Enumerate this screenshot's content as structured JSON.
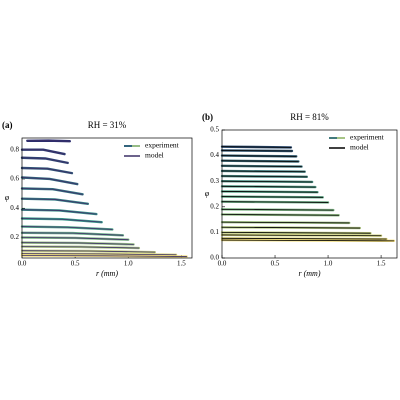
{
  "chart_data": [
    {
      "type": "line",
      "panel_label": "(a)",
      "title": "RH = 31%",
      "xlabel": "r (mm)",
      "ylabel": "φ",
      "xlim": [
        0,
        1.6
      ],
      "ylim": [
        0.06,
        0.88
      ],
      "xticks": [
        {
          "value": 0,
          "label": "0.0"
        },
        0.5,
        {
          "value": 1,
          "label": "1.0"
        },
        1.5
      ],
      "yticks": [
        0.2,
        0.4,
        0.6,
        0.8
      ],
      "legend": "upper right",
      "series": [
        {
          "name": "experiment",
          "colors": [
            "#2b2d6e",
            "#3b9a8c",
            "#f2de7f"
          ],
          "curves": [
            {
              "x": [
                0.05,
                0.25,
                0.45
              ],
              "values": [
                0.861,
                0.862,
                0.858
              ]
            },
            {
              "x": [
                0,
                0.2,
                0.4
              ],
              "values": [
                0.8,
                0.8,
                0.77
              ]
            },
            {
              "x": [
                0,
                0.22,
                0.43
              ],
              "values": [
                0.745,
                0.74,
                0.71
              ]
            },
            {
              "x": [
                0,
                0.24,
                0.47
              ],
              "values": [
                0.675,
                0.67,
                0.64
              ]
            },
            {
              "x": [
                0,
                0.26,
                0.52
              ],
              "values": [
                0.61,
                0.6,
                0.565
              ]
            },
            {
              "x": [
                0,
                0.29,
                0.57
              ],
              "values": [
                0.535,
                0.53,
                0.495
              ]
            },
            {
              "x": [
                0,
                0.31,
                0.62
              ],
              "values": [
                0.465,
                0.46,
                0.43
              ]
            },
            {
              "x": [
                0,
                0.35,
                0.7
              ],
              "values": [
                0.39,
                0.385,
                0.36
              ]
            },
            {
              "x": [
                0,
                0.38,
                0.75
              ],
              "values": [
                0.33,
                0.325,
                0.305
              ]
            },
            {
              "x": [
                0,
                0.43,
                0.85
              ],
              "values": [
                0.275,
                0.27,
                0.255
              ]
            },
            {
              "x": [
                0,
                0.48,
                0.95
              ],
              "values": [
                0.232,
                0.23,
                0.215
              ]
            },
            {
              "x": [
                0,
                0.5,
                1.0
              ],
              "values": [
                0.2,
                0.197,
                0.185
              ]
            },
            {
              "x": [
                0,
                0.53,
                1.05
              ],
              "values": [
                0.165,
                0.163,
                0.153
              ]
            },
            {
              "x": [
                0,
                0.55,
                1.1
              ],
              "values": [
                0.138,
                0.136,
                0.128
              ]
            },
            {
              "x": [
                0,
                0.63,
                1.25
              ],
              "values": [
                0.11,
                0.108,
                0.1
              ]
            },
            {
              "x": [
                0,
                0.73,
                1.45
              ],
              "values": [
                0.09,
                0.088,
                0.082
              ]
            },
            {
              "x": [
                0,
                0.78,
                1.55
              ],
              "values": [
                0.077,
                0.075,
                0.07
              ]
            }
          ]
        },
        {
          "name": "model",
          "color": "#3b2f66",
          "curves": [
            {
              "x": [
                0.05,
                0.25,
                0.45
              ],
              "values": [
                0.861,
                0.862,
                0.858
              ]
            },
            {
              "x": [
                0,
                0.2,
                0.4
              ],
              "values": [
                0.8,
                0.8,
                0.77
              ]
            },
            {
              "x": [
                0,
                0.22,
                0.43
              ],
              "values": [
                0.745,
                0.74,
                0.71
              ]
            },
            {
              "x": [
                0,
                0.24,
                0.47
              ],
              "values": [
                0.675,
                0.67,
                0.64
              ]
            },
            {
              "x": [
                0,
                0.26,
                0.52
              ],
              "values": [
                0.61,
                0.6,
                0.565
              ]
            },
            {
              "x": [
                0,
                0.29,
                0.57
              ],
              "values": [
                0.535,
                0.53,
                0.495
              ]
            },
            {
              "x": [
                0,
                0.31,
                0.62
              ],
              "values": [
                0.465,
                0.46,
                0.43
              ]
            },
            {
              "x": [
                0,
                0.35,
                0.7
              ],
              "values": [
                0.39,
                0.385,
                0.36
              ]
            },
            {
              "x": [
                0,
                0.38,
                0.75
              ],
              "values": [
                0.33,
                0.325,
                0.305
              ]
            },
            {
              "x": [
                0,
                0.43,
                0.85
              ],
              "values": [
                0.275,
                0.27,
                0.255
              ]
            },
            {
              "x": [
                0,
                0.48,
                0.95
              ],
              "values": [
                0.232,
                0.23,
                0.215
              ]
            },
            {
              "x": [
                0,
                0.5,
                1.0
              ],
              "values": [
                0.2,
                0.197,
                0.185
              ]
            },
            {
              "x": [
                0,
                0.53,
                1.05
              ],
              "values": [
                0.165,
                0.163,
                0.153
              ]
            },
            {
              "x": [
                0,
                0.55,
                1.1
              ],
              "values": [
                0.138,
                0.136,
                0.128
              ]
            },
            {
              "x": [
                0,
                0.63,
                1.25
              ],
              "values": [
                0.11,
                0.108,
                0.1
              ]
            },
            {
              "x": [
                0,
                0.73,
                1.45
              ],
              "values": [
                0.09,
                0.088,
                0.082
              ]
            },
            {
              "x": [
                0,
                0.78,
                1.55
              ],
              "values": [
                0.077,
                0.075,
                0.07
              ]
            }
          ]
        }
      ]
    },
    {
      "type": "line",
      "panel_label": "(b)",
      "title": "RH = 81%",
      "xlabel": "r (mm)",
      "ylabel": "φ",
      "xlim": [
        0,
        1.65
      ],
      "ylim": [
        0,
        0.5
      ],
      "xticks": [
        {
          "value": 0,
          "label": "0.0"
        },
        0.5,
        {
          "value": 1,
          "label": "1.0"
        },
        1.5
      ],
      "yticks": [
        {
          "value": 0,
          "label": "0.0"
        },
        0.1,
        0.2,
        0.3,
        0.4,
        0.5
      ],
      "legend": "upper right",
      "series": [
        {
          "name": "experiment",
          "colors": [
            "#2b4a6e",
            "#5aaa8c",
            "#f2de7f"
          ],
          "curves": [
            {
              "x": [
                0,
                0.65
              ],
              "values": [
                0.435,
                0.432
              ]
            },
            {
              "x": [
                0,
                0.66
              ],
              "values": [
                0.42,
                0.418
              ]
            },
            {
              "x": [
                0,
                0.7
              ],
              "values": [
                0.4,
                0.397
              ]
            },
            {
              "x": [
                0,
                0.72
              ],
              "values": [
                0.38,
                0.377
              ]
            },
            {
              "x": [
                0,
                0.75
              ],
              "values": [
                0.36,
                0.357
              ]
            },
            {
              "x": [
                0,
                0.78
              ],
              "values": [
                0.34,
                0.337
              ]
            },
            {
              "x": [
                0,
                0.8
              ],
              "values": [
                0.32,
                0.317
              ]
            },
            {
              "x": [
                0,
                0.85
              ],
              "values": [
                0.3,
                0.297
              ]
            },
            {
              "x": [
                0,
                0.88
              ],
              "values": [
                0.28,
                0.277
              ]
            },
            {
              "x": [
                0,
                0.9
              ],
              "values": [
                0.26,
                0.257
              ]
            },
            {
              "x": [
                0,
                0.95
              ],
              "values": [
                0.24,
                0.237
              ]
            },
            {
              "x": [
                0,
                1.0
              ],
              "values": [
                0.22,
                0.217
              ]
            },
            {
              "x": [
                0,
                1.05
              ],
              "values": [
                0.19,
                0.187
              ]
            },
            {
              "x": [
                0,
                1.1
              ],
              "values": [
                0.17,
                0.167
              ]
            },
            {
              "x": [
                0,
                1.2
              ],
              "values": [
                0.14,
                0.137
              ]
            },
            {
              "x": [
                0,
                1.3
              ],
              "values": [
                0.12,
                0.117
              ]
            },
            {
              "x": [
                0,
                1.4
              ],
              "values": [
                0.1,
                0.097
              ]
            },
            {
              "x": [
                0,
                1.5
              ],
              "values": [
                0.09,
                0.087
              ]
            },
            {
              "x": [
                0,
                1.55
              ],
              "values": [
                0.077,
                0.074
              ]
            },
            {
              "x": [
                0,
                1.62
              ],
              "values": [
                0.07,
                0.067
              ]
            }
          ]
        },
        {
          "name": "model",
          "color": "#000000",
          "curves": [
            {
              "x": [
                0,
                0.65
              ],
              "values": [
                0.435,
                0.432
              ]
            },
            {
              "x": [
                0,
                0.66
              ],
              "values": [
                0.42,
                0.418
              ]
            },
            {
              "x": [
                0,
                0.7
              ],
              "values": [
                0.4,
                0.397
              ]
            },
            {
              "x": [
                0,
                0.72
              ],
              "values": [
                0.38,
                0.377
              ]
            },
            {
              "x": [
                0,
                0.75
              ],
              "values": [
                0.36,
                0.357
              ]
            },
            {
              "x": [
                0,
                0.78
              ],
              "values": [
                0.34,
                0.337
              ]
            },
            {
              "x": [
                0,
                0.8
              ],
              "values": [
                0.32,
                0.317
              ]
            },
            {
              "x": [
                0,
                0.85
              ],
              "values": [
                0.3,
                0.297
              ]
            },
            {
              "x": [
                0,
                0.88
              ],
              "values": [
                0.28,
                0.277
              ]
            },
            {
              "x": [
                0,
                0.9
              ],
              "values": [
                0.26,
                0.257
              ]
            },
            {
              "x": [
                0,
                0.95
              ],
              "values": [
                0.24,
                0.237
              ]
            },
            {
              "x": [
                0,
                1.0
              ],
              "values": [
                0.22,
                0.217
              ]
            },
            {
              "x": [
                0,
                1.05
              ],
              "values": [
                0.19,
                0.187
              ]
            },
            {
              "x": [
                0,
                1.1
              ],
              "values": [
                0.17,
                0.167
              ]
            },
            {
              "x": [
                0,
                1.2
              ],
              "values": [
                0.14,
                0.137
              ]
            },
            {
              "x": [
                0,
                1.3
              ],
              "values": [
                0.12,
                0.117
              ]
            },
            {
              "x": [
                0,
                1.4
              ],
              "values": [
                0.1,
                0.097
              ]
            },
            {
              "x": [
                0,
                1.5
              ],
              "values": [
                0.09,
                0.087
              ]
            },
            {
              "x": [
                0,
                1.55
              ],
              "values": [
                0.077,
                0.074
              ]
            },
            {
              "x": [
                0,
                1.62
              ],
              "values": [
                0.07,
                0.067
              ]
            }
          ]
        }
      ]
    }
  ]
}
